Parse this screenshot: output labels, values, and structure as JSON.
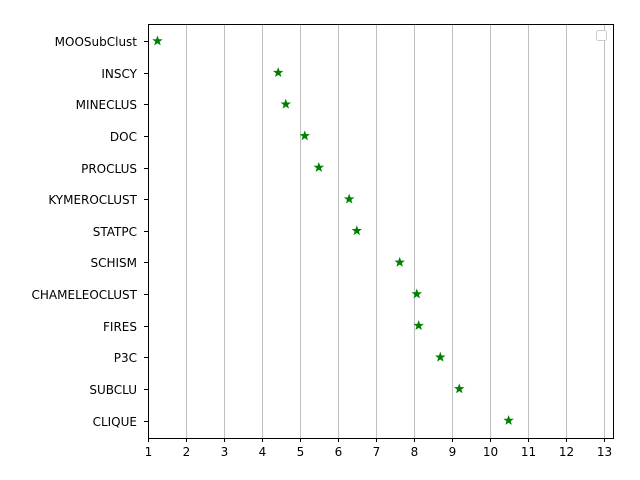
{
  "chart_data": {
    "type": "scatter",
    "title": "",
    "xlabel": "",
    "ylabel": "",
    "xlim": [
      1,
      13.25
    ],
    "x_ticks": [
      1,
      2,
      3,
      4,
      5,
      6,
      7,
      8,
      9,
      10,
      11,
      12,
      13
    ],
    "grid": {
      "x": true,
      "y": false
    },
    "legend": {
      "placement": "top-right",
      "entries": []
    },
    "marker": "star",
    "color": "#008000",
    "categories": [
      "MOOSubClust",
      "INSCY",
      "MINECLUS",
      "DOC",
      "PROCLUS",
      "KYMEROCLUST",
      "STATPC",
      "SCHISM",
      "CHAMELEOCLUST",
      "FIRES",
      "P3C",
      "SUBCLU",
      "CLIQUE"
    ],
    "values": [
      1.25,
      4.43,
      4.63,
      5.13,
      5.5,
      6.3,
      6.5,
      7.63,
      8.08,
      8.13,
      8.7,
      9.2,
      10.5
    ]
  }
}
